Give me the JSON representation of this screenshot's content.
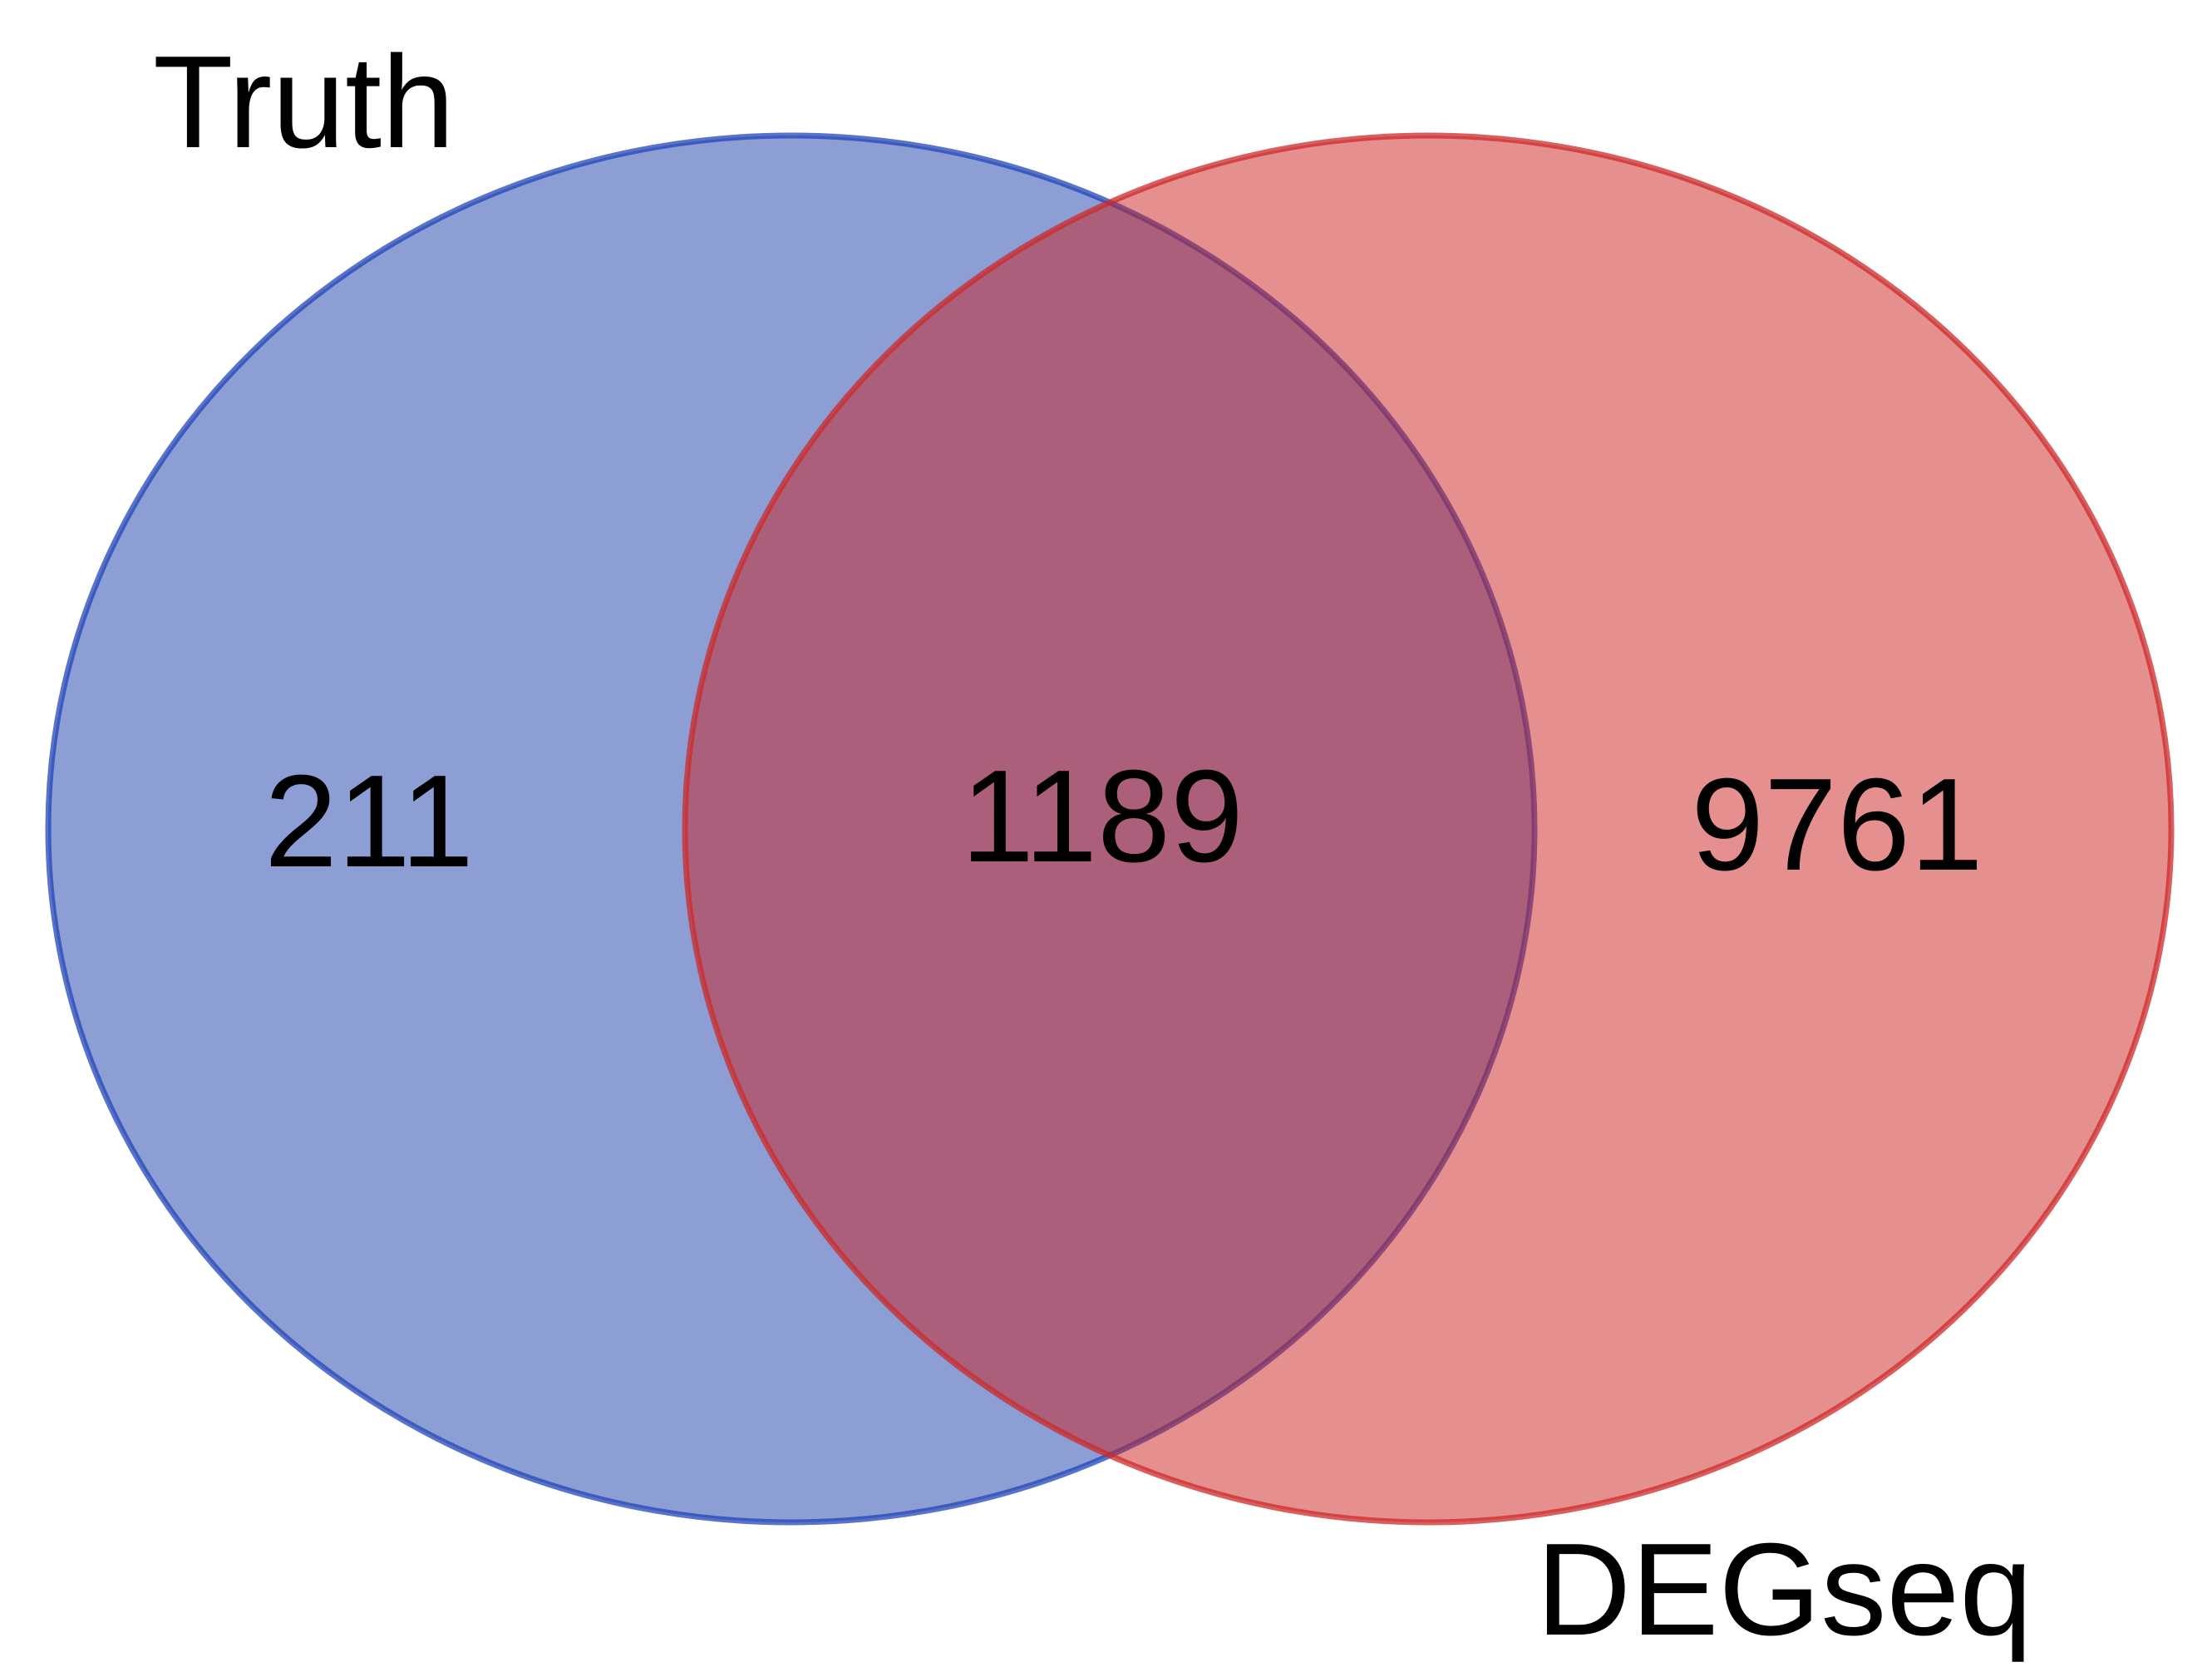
{
  "diagram": {
    "type": "venn",
    "sets": [
      {
        "id": "truth",
        "label": "Truth",
        "fill": "#1a3eaa",
        "stroke": "#2244b8",
        "fill_opacity": 0.5
      },
      {
        "id": "degseq",
        "label": "DEGseq",
        "fill": "#cc1f1f",
        "stroke": "#cc2a2a",
        "fill_opacity": 0.5
      }
    ],
    "regions": {
      "truth_only": "211",
      "both": "1189",
      "degseq_only": "9761"
    },
    "background": "#ffffff"
  }
}
